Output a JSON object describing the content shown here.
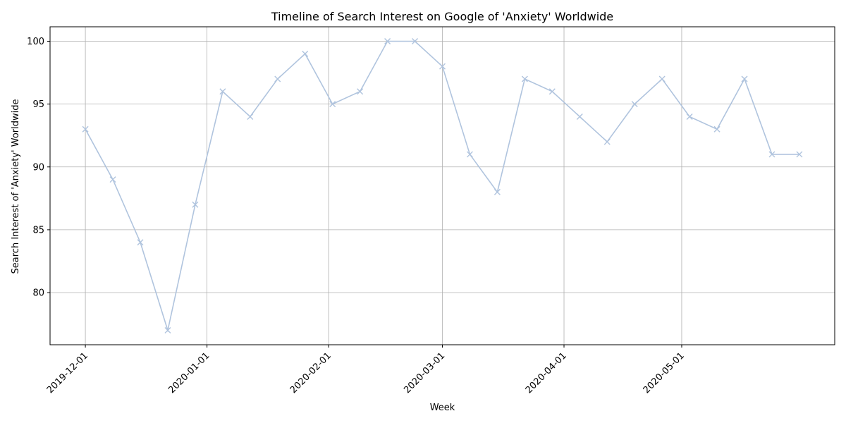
{
  "chart_data": {
    "type": "line",
    "title": "Timeline of Search Interest on Google of 'Anxiety' Worldwide",
    "xlabel": "Week",
    "ylabel": "Search Interest of 'Anxiety' Worldwide",
    "x": [
      "2019-12-01",
      "2019-12-08",
      "2019-12-15",
      "2019-12-22",
      "2019-12-29",
      "2020-01-05",
      "2020-01-12",
      "2020-01-19",
      "2020-01-26",
      "2020-02-02",
      "2020-02-09",
      "2020-02-16",
      "2020-02-23",
      "2020-03-01",
      "2020-03-08",
      "2020-03-15",
      "2020-03-22",
      "2020-03-29",
      "2020-04-05",
      "2020-04-12",
      "2020-04-19",
      "2020-04-26",
      "2020-05-03",
      "2020-05-10",
      "2020-05-17",
      "2020-05-24",
      "2020-05-31"
    ],
    "series": [
      {
        "values": [
          93,
          89,
          84,
          77,
          87,
          96,
          94,
          97,
          99,
          95,
          96,
          100,
          100,
          98,
          91,
          88,
          97,
          96,
          94,
          92,
          95,
          97,
          94,
          93,
          97,
          91,
          91
        ],
        "color": "#b0c4de",
        "marker": "x"
      }
    ],
    "xticks": [
      "2019-12-01",
      "2020-01-01",
      "2020-02-01",
      "2020-03-01",
      "2020-04-01",
      "2020-05-01"
    ],
    "yticks": [
      80,
      85,
      90,
      95,
      100
    ],
    "ylim": [
      75.85,
      101.15
    ],
    "xlim": [
      "2019-11-22",
      "2020-06-09"
    ],
    "grid": true
  }
}
